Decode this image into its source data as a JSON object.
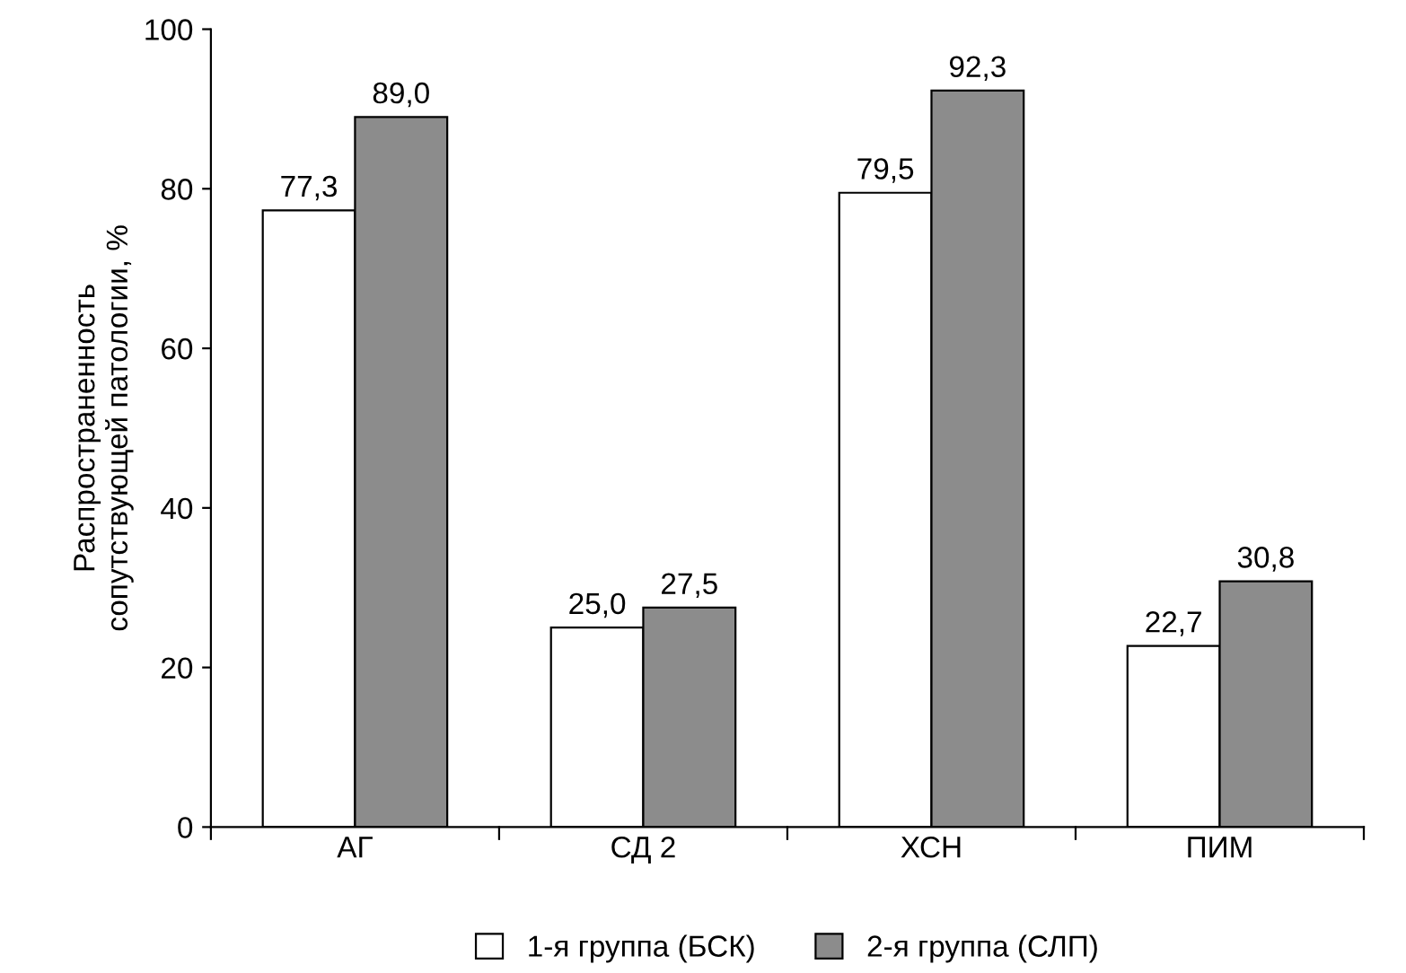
{
  "chart_data": {
    "type": "bar",
    "ylabel": "Распространенность\nсопутствующей патологии, %",
    "categories": [
      "АГ",
      "СД 2",
      "ХСН",
      "ПИМ"
    ],
    "series": [
      {
        "name": "1-я группа (БСК)",
        "color": "#ffffff",
        "values": [
          77.3,
          25.0,
          79.5,
          22.7
        ],
        "value_labels": [
          "77,3",
          "25,0",
          "79,5",
          "22,7"
        ]
      },
      {
        "name": "2-я группа (СЛП)",
        "color": "#8c8c8c",
        "values": [
          89.0,
          27.5,
          92.3,
          30.8
        ],
        "value_labels": [
          "89,0",
          "27,5",
          "92,3",
          "30,8"
        ]
      }
    ],
    "ylim": [
      0,
      100
    ],
    "yticks": [
      0,
      20,
      40,
      60,
      80,
      100
    ],
    "grid": false,
    "legend": "bottom"
  }
}
